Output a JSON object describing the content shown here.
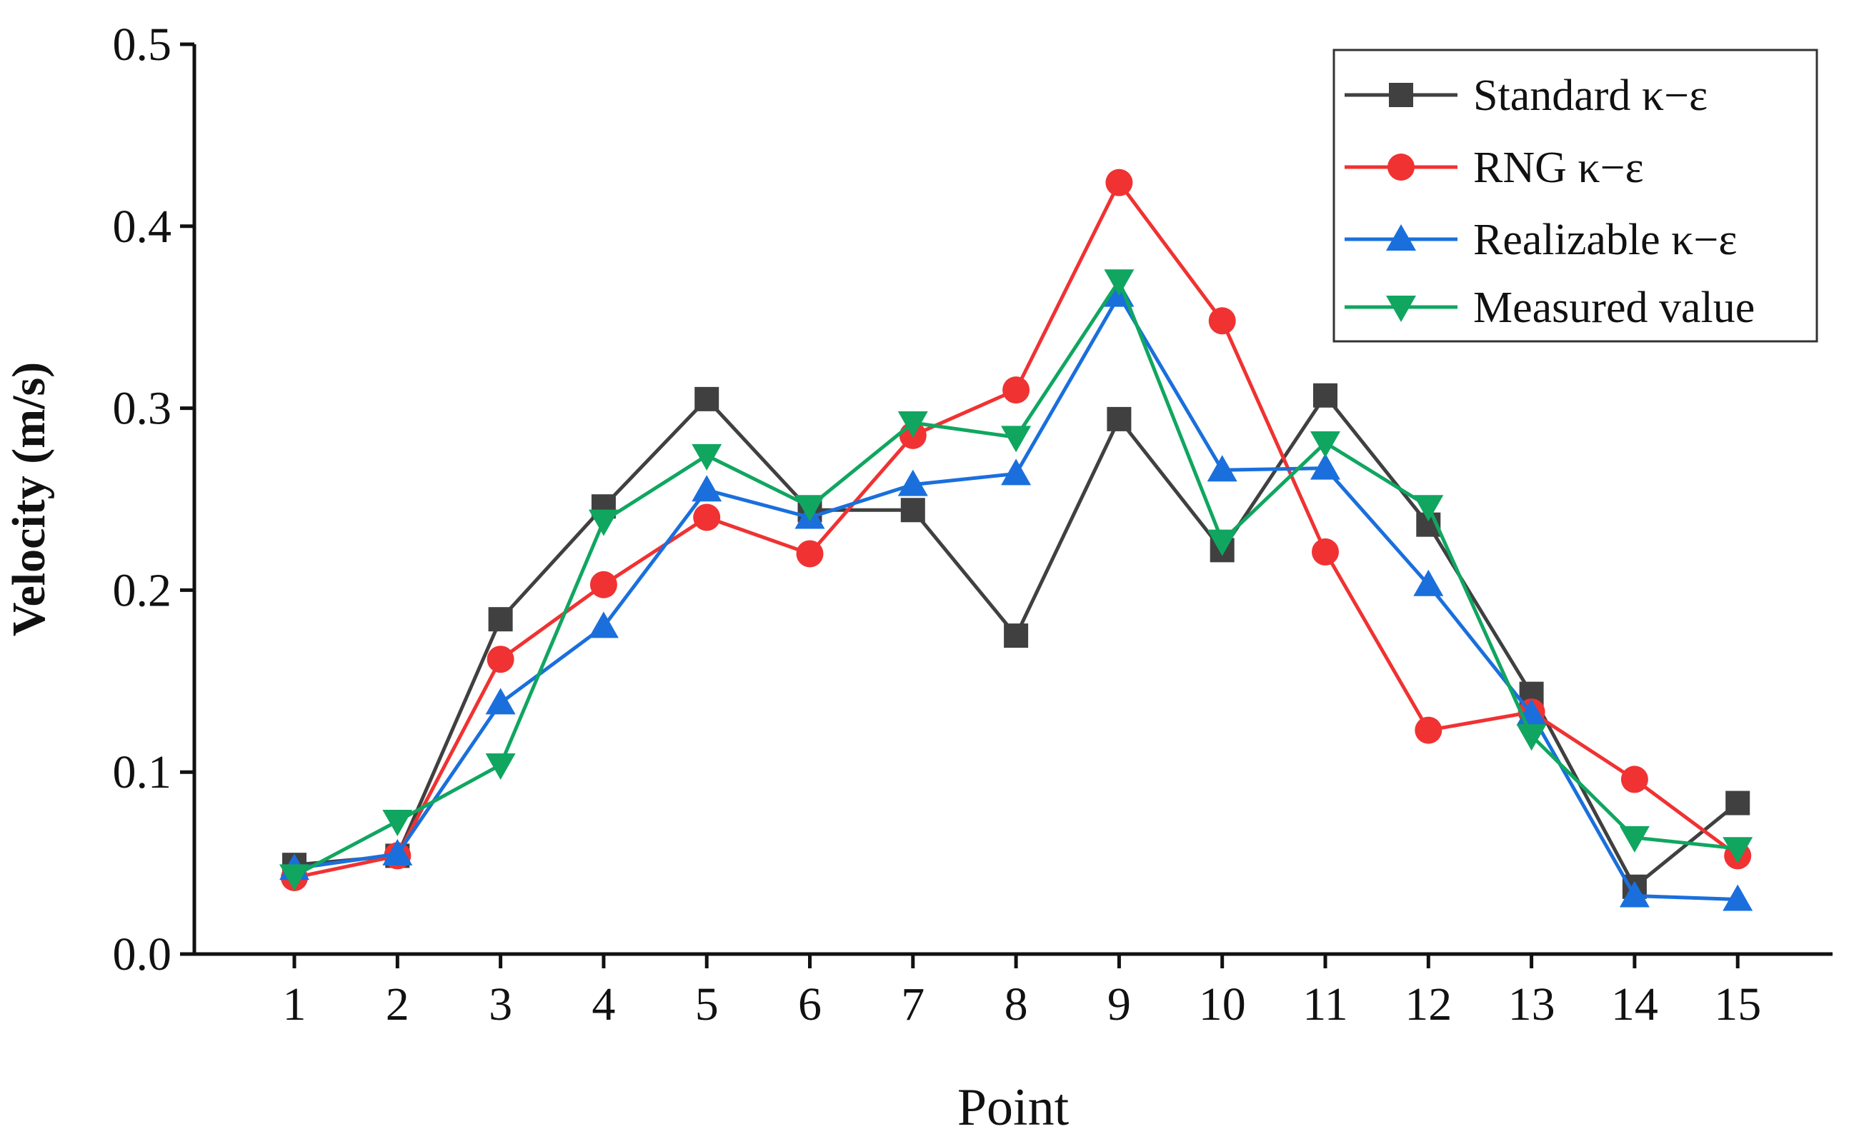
{
  "chart_data": {
    "type": "line",
    "xlabel": "Point",
    "ylabel": "Velocity  (m/s)",
    "ylim": [
      0.0,
      0.5
    ],
    "yticks": [
      "0.0",
      "0.1",
      "0.2",
      "0.3",
      "0.4",
      "0.5"
    ],
    "x": [
      1,
      2,
      3,
      4,
      5,
      6,
      7,
      8,
      9,
      10,
      11,
      12,
      13,
      14,
      15
    ],
    "xtick_labels": [
      "1",
      "2",
      "3",
      "4",
      "5",
      "6",
      "7",
      "8",
      "9",
      "10",
      "11",
      "12",
      "13",
      "14",
      "15"
    ],
    "legend_position": "top-right",
    "series": [
      {
        "name": "Standard κ−ε",
        "color": "#404040",
        "marker": "square",
        "values": [
          0.049,
          0.054,
          0.184,
          0.246,
          0.305,
          0.244,
          0.244,
          0.175,
          0.294,
          0.222,
          0.307,
          0.236,
          0.143,
          0.037,
          0.083
        ]
      },
      {
        "name": "RNG κ−ε",
        "color": "#f03232",
        "marker": "circle",
        "values": [
          0.042,
          0.054,
          0.162,
          0.203,
          0.24,
          0.22,
          0.285,
          0.31,
          0.424,
          0.348,
          0.221,
          0.123,
          0.133,
          0.096,
          0.054
        ]
      },
      {
        "name": "Realizable κ−ε",
        "color": "#1a6fdc",
        "marker": "triangle-up",
        "values": [
          0.047,
          0.055,
          0.138,
          0.18,
          0.255,
          0.24,
          0.258,
          0.264,
          0.362,
          0.266,
          0.267,
          0.203,
          0.132,
          0.032,
          0.03
        ]
      },
      {
        "name": "Measured value",
        "color": "#10a660",
        "marker": "triangle-down",
        "values": [
          0.043,
          0.073,
          0.104,
          0.238,
          0.274,
          0.246,
          0.292,
          0.284,
          0.37,
          0.227,
          0.281,
          0.246,
          0.12,
          0.064,
          0.058
        ]
      }
    ]
  }
}
